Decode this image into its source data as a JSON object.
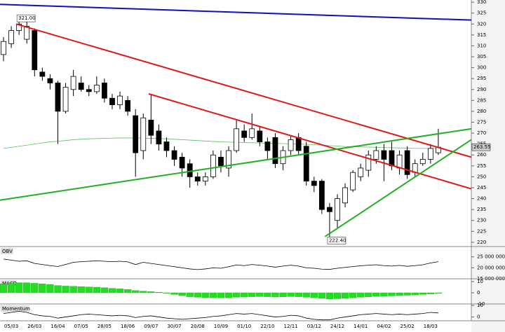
{
  "chart_data": [
    {
      "type": "candlestick",
      "x": [
        null,
        "05/03",
        null,
        null,
        "26/03",
        null,
        null,
        "16/04",
        null,
        null,
        "07/05",
        null,
        null,
        "28/05",
        null,
        null,
        "18/06",
        null,
        null,
        "09/07",
        null,
        null,
        "30/07",
        null,
        null,
        "20/08",
        null,
        null,
        "10/09",
        null,
        null,
        "01/10",
        null,
        null,
        "22/10",
        null,
        null,
        "12/11",
        null,
        null,
        "03/12",
        null,
        null,
        "24/12",
        null,
        null,
        "14/01",
        null,
        null,
        "04/02",
        null,
        null,
        "25/02",
        null,
        null,
        "18/03",
        null
      ],
      "open": [
        306,
        311,
        317,
        313,
        317,
        298,
        295,
        293,
        280,
        290,
        293,
        290,
        289,
        293,
        286,
        283,
        285,
        278,
        262,
        276,
        271,
        266,
        262,
        259,
        256,
        250,
        248,
        250,
        259,
        254,
        262,
        271,
        268,
        271,
        266,
        268,
        256,
        262,
        268,
        264,
        248,
        248,
        236,
        230,
        238,
        244,
        250,
        253,
        258,
        262,
        262,
        254,
        262,
        252,
        256,
        258,
        261
      ],
      "high": [
        314,
        319,
        321,
        321,
        318,
        300,
        297,
        294,
        293,
        299,
        296,
        292,
        296,
        295,
        288,
        289,
        287,
        281,
        279,
        288,
        274,
        268,
        264,
        261,
        258,
        252,
        252,
        262,
        262,
        264,
        276,
        274,
        279,
        273,
        268,
        270,
        264,
        269,
        270,
        266,
        250,
        249,
        238,
        242,
        247,
        253,
        256,
        262,
        264,
        265,
        266,
        262,
        264,
        258,
        261,
        265,
        272
      ],
      "low": [
        303,
        309,
        315,
        311,
        296,
        294,
        290,
        265,
        279,
        287,
        289,
        287,
        288,
        284,
        281,
        281,
        278,
        250,
        258,
        265,
        262,
        259,
        255,
        250,
        245,
        246,
        246,
        249,
        252,
        250,
        261,
        266,
        267,
        264,
        258,
        254,
        253,
        260,
        260,
        246,
        243,
        233,
        222.4,
        226,
        236,
        243,
        248,
        250,
        256,
        248,
        253,
        251,
        249,
        250,
        255,
        256,
        260
      ],
      "close": [
        312,
        317,
        320,
        319,
        299,
        296,
        293,
        280,
        291,
        296,
        290,
        289,
        292,
        286,
        283,
        287,
        280,
        261,
        277,
        269,
        265,
        262,
        258,
        254,
        250,
        248,
        250,
        260,
        255,
        262,
        272,
        268,
        272,
        266,
        262,
        256,
        262,
        267,
        262,
        248,
        246,
        235,
        234,
        240,
        245,
        252,
        254,
        260,
        262,
        258,
        255,
        260,
        251,
        256,
        258,
        263,
        263.55
      ],
      "high_value_labels": [
        null,
        null,
        "321.00",
        null,
        null,
        null,
        null,
        null,
        null,
        null,
        null,
        null,
        null,
        null,
        null,
        null,
        null,
        null,
        null,
        null,
        null,
        null,
        null,
        null,
        null,
        null,
        null,
        null,
        null,
        null,
        null,
        null,
        null,
        null,
        null,
        null,
        null,
        null,
        null,
        null,
        null,
        null,
        null,
        null,
        null,
        null,
        null,
        null,
        null,
        null,
        null,
        null,
        null,
        null,
        null,
        null,
        null
      ],
      "low_value_labels": [
        null,
        null,
        null,
        null,
        null,
        null,
        null,
        null,
        null,
        null,
        null,
        null,
        null,
        null,
        null,
        null,
        null,
        null,
        null,
        null,
        null,
        null,
        null,
        null,
        null,
        null,
        null,
        null,
        null,
        null,
        null,
        null,
        null,
        null,
        null,
        null,
        null,
        null,
        null,
        null,
        null,
        null,
        "222.40",
        null,
        null,
        null,
        null,
        null,
        null,
        null,
        null,
        null,
        null,
        null,
        null,
        null,
        null
      ],
      "close_value_labels": [
        null,
        null,
        null,
        null,
        null,
        null,
        null,
        null,
        null,
        null,
        null,
        null,
        null,
        null,
        null,
        null,
        null,
        null,
        null,
        null,
        null,
        null,
        null,
        null,
        null,
        null,
        null,
        null,
        null,
        null,
        null,
        null,
        null,
        null,
        null,
        null,
        null,
        null,
        null,
        null,
        null,
        null,
        null,
        null,
        null,
        null,
        null,
        null,
        null,
        null,
        null,
        null,
        null,
        null,
        null,
        null,
        "263.55"
      ],
      "moving_average": {
        "color": "#5cc05c",
        "values": [
          263,
          263.5,
          264,
          264.5,
          265,
          265.5,
          266,
          266.3,
          266.6,
          267,
          267.2,
          267.4,
          267.5,
          267.6,
          267.7,
          267.8,
          267.8,
          267.8,
          267.7,
          267.6,
          267.5,
          267.4,
          267.2,
          267,
          266.8,
          266.6,
          266.4,
          266.2,
          266,
          265.9,
          265.8,
          265.7,
          265.6,
          265.5,
          265.4,
          265.3,
          265.2,
          265.1,
          265,
          264.9,
          264.7,
          264.5,
          264.3,
          264.1,
          263.9,
          263.8,
          263.7,
          263.6,
          263.5,
          263.4,
          263.3,
          263.2,
          263.1,
          263,
          263,
          263,
          263
        ]
      },
      "trendlines": [
        {
          "color": "#1010c0",
          "from": [
            -0.45,
            329
          ],
          "to": [
            60.25,
            321.8
          ]
        },
        {
          "color": "#e01818",
          "from": [
            1.63,
            320
          ],
          "to": [
            60.25,
            259
          ]
        },
        {
          "color": "#e01818",
          "from": [
            18.7,
            288
          ],
          "to": [
            60.25,
            244.5
          ]
        },
        {
          "color": "#22b022",
          "from": [
            -0.45,
            239.3
          ],
          "to": [
            60.25,
            272
          ]
        },
        {
          "color": "#22b022",
          "from": [
            41.4,
            222.6
          ],
          "to": [
            60.25,
            267
          ]
        }
      ],
      "ylim": [
        219,
        331
      ],
      "yticks": [
        220,
        225,
        230,
        235,
        240,
        245,
        250,
        255,
        260,
        265,
        270,
        275,
        280,
        285,
        290,
        295,
        300,
        305,
        310,
        315,
        320,
        325,
        330
      ]
    },
    {
      "type": "line",
      "title": "OBV",
      "color": "#000000",
      "values": [
        24000000,
        23500000,
        23000000,
        23200000,
        22000000,
        21500000,
        21000000,
        20600000,
        21500000,
        22500000,
        22800000,
        23000000,
        23200000,
        23000000,
        22800000,
        23000000,
        22700000,
        21500000,
        22500000,
        22000000,
        21500000,
        21000000,
        20500000,
        20000000,
        19500000,
        19200000,
        19500000,
        20000000,
        19800000,
        20500000,
        21300000,
        21000000,
        21500000,
        21200000,
        20800000,
        20300000,
        20800000,
        21200000,
        20800000,
        20000000,
        19800000,
        19400000,
        19300000,
        19800000,
        20200000,
        20600000,
        20900000,
        21200000,
        21400000,
        21000000,
        20800000,
        21100000,
        20700000,
        21000000,
        21400000,
        22200000,
        22800000
      ],
      "ylim": [
        15000000,
        29700000
      ],
      "yticks": [
        {
          "value": 15000000,
          "label": "15 000 000"
        },
        {
          "value": 20000000,
          "label": "20 000 000"
        },
        {
          "value": 25000000,
          "label": "25 000 000"
        }
      ]
    },
    {
      "type": "bar",
      "title": "MACD",
      "color": "#22dd22",
      "values": [
        8,
        8.5,
        9,
        9,
        8.5,
        8,
        7.5,
        6.5,
        6,
        5.8,
        5.5,
        5.2,
        5,
        4.6,
        4,
        3.5,
        3,
        2,
        1.5,
        1,
        0.5,
        -0.5,
        -1.5,
        -2.5,
        -3.5,
        -4,
        -4.3,
        -4.5,
        -4.6,
        -4.5,
        -4,
        -3.8,
        -3.5,
        -3.4,
        -3.5,
        -3.8,
        -3.6,
        -3.4,
        -3.5,
        -4,
        -4.5,
        -5,
        -5.5,
        -5.3,
        -5,
        -4.5,
        -4,
        -3.6,
        -3.2,
        -3,
        -2.8,
        -2.5,
        -2.2,
        -2,
        -1.5,
        -1,
        -0.5
      ],
      "ylim": [
        -10,
        12.5
      ],
      "yticks": [
        -10,
        0,
        10
      ]
    },
    {
      "type": "line",
      "title": "Momentum",
      "color": "#000000",
      "values": [
        3,
        4,
        5,
        4,
        2,
        1,
        0.5,
        -1,
        0,
        1,
        2,
        2.5,
        2,
        1.5,
        1,
        1.5,
        1,
        -0.5,
        0.5,
        1,
        0,
        -1,
        -1.5,
        -2,
        -1.5,
        -1,
        -0.5,
        0.5,
        1,
        2,
        3,
        2.5,
        3,
        2,
        1,
        0,
        0.5,
        1.5,
        1,
        -1,
        -2,
        -2.5,
        -2.5,
        -1,
        0,
        1,
        2,
        2.5,
        3,
        2.5,
        2,
        2.5,
        2,
        2.5,
        3,
        4,
        3.5
      ],
      "ylim": [
        -2.7,
        11.3
      ],
      "yticks": [
        0,
        10
      ]
    }
  ]
}
